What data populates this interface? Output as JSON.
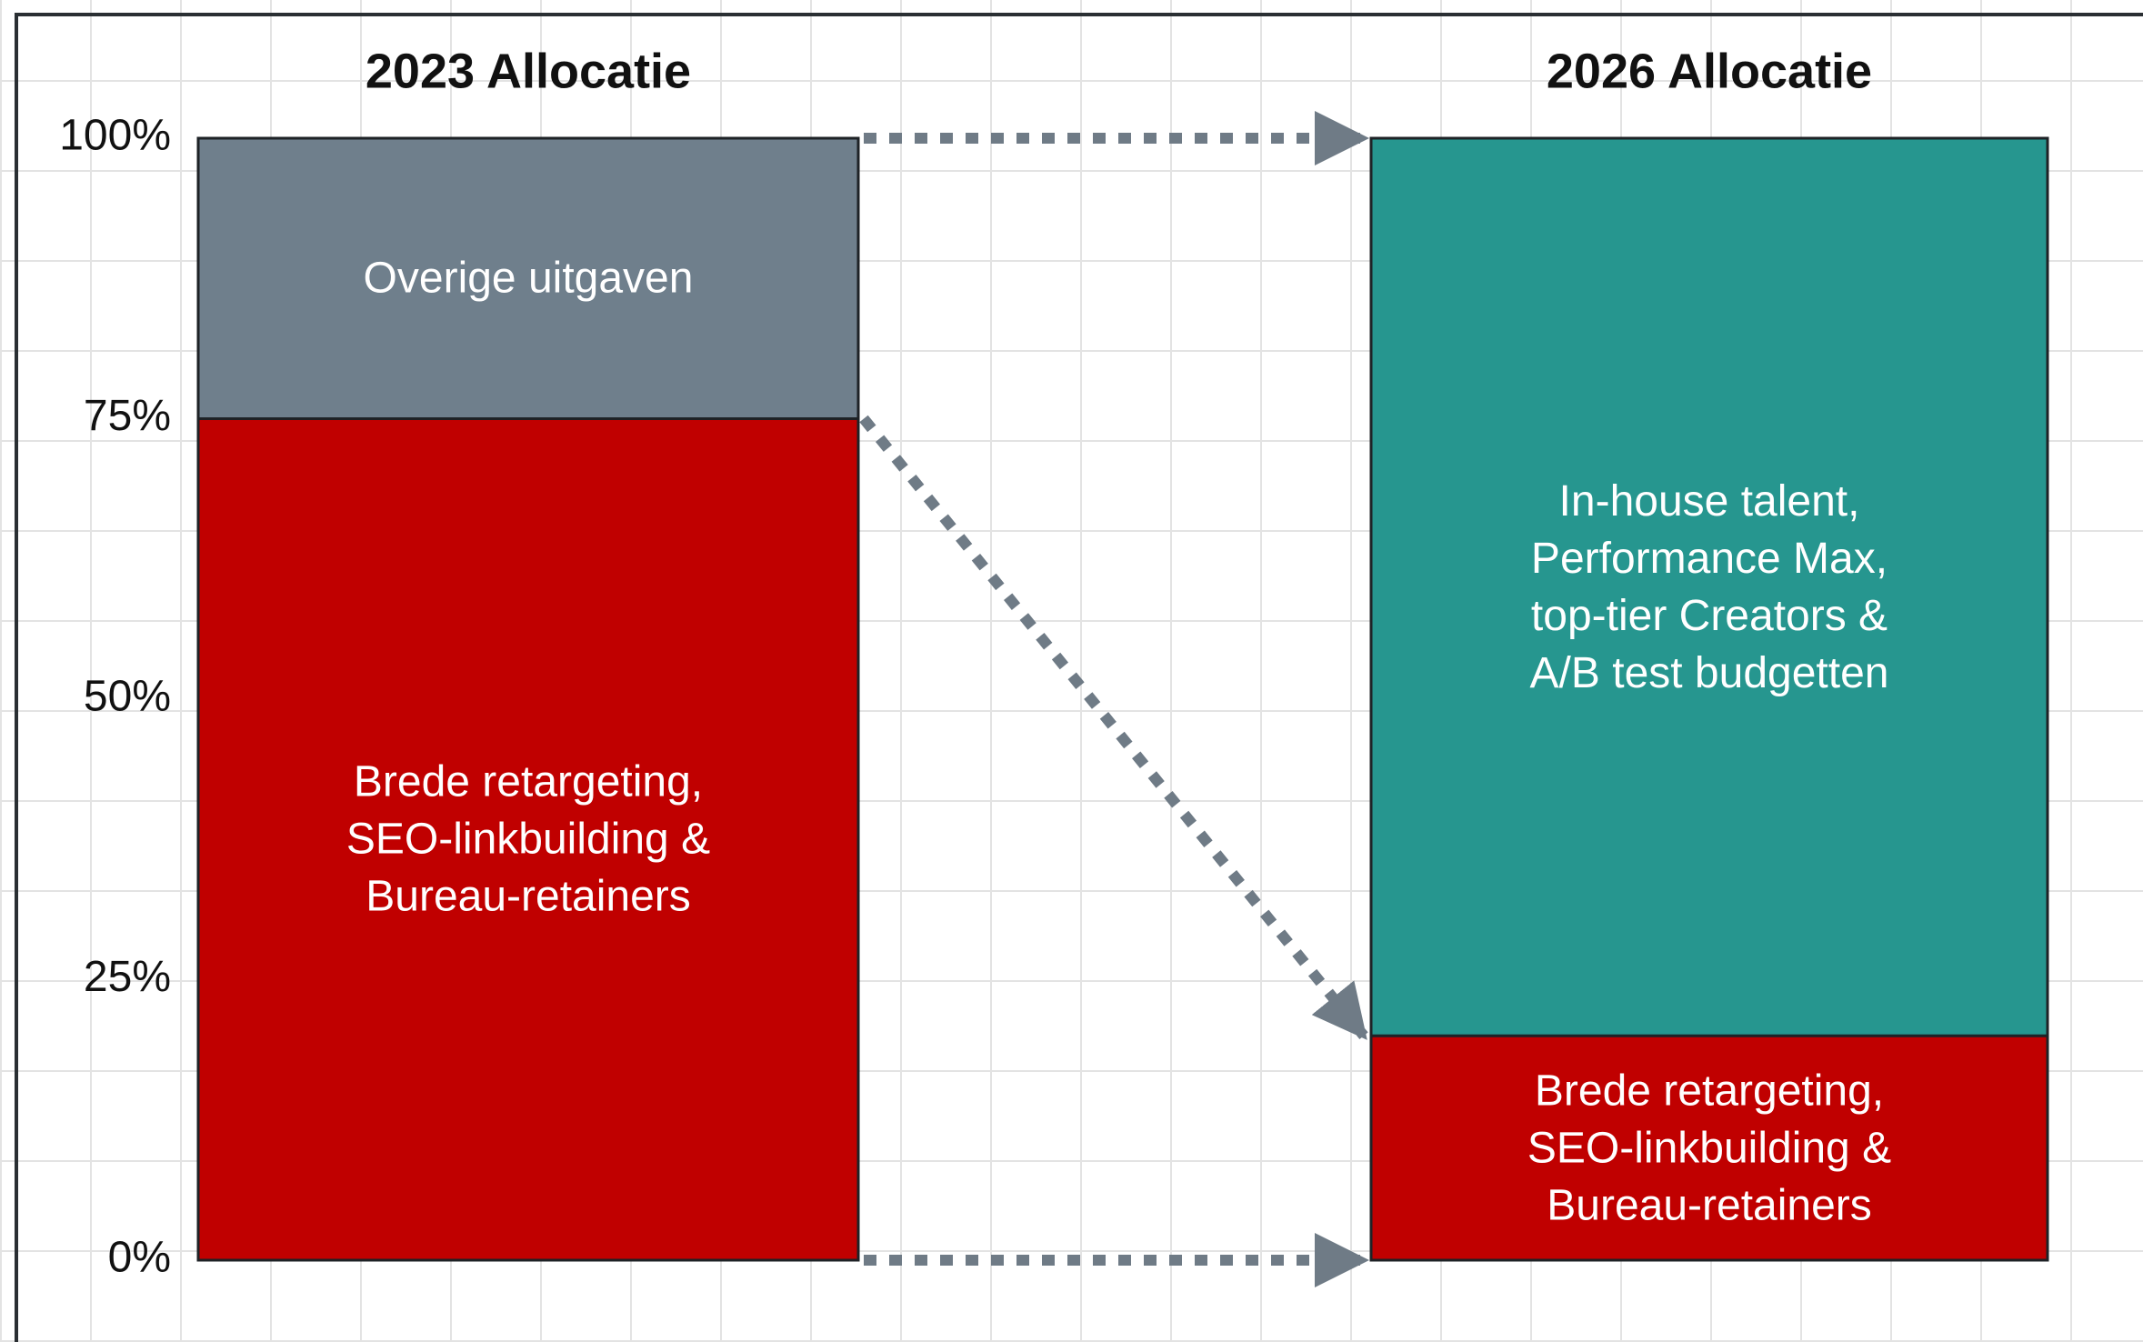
{
  "chart_data": {
    "type": "stacked_bar",
    "categories": [
      "2023 Allocatie",
      "2026 Allocatie"
    ],
    "series": [
      {
        "name": "Brede retargeting,\nSEO-linkbuilding &\nBureau-retainers",
        "color": "#c00000",
        "values": [
          75,
          20
        ]
      },
      {
        "name": "Overige uitgaven",
        "color": "#6f7f8c",
        "values": [
          25,
          null
        ]
      },
      {
        "name": "In-house talent,\nPerformance Max,\ntop-tier Creators &\nA/B test budgetten",
        "color": "#26968f",
        "values": [
          null,
          80
        ]
      }
    ],
    "ylim": [
      0,
      100
    ],
    "yticks": [
      {
        "value": 0,
        "label": "0%"
      },
      {
        "value": 25,
        "label": "25%"
      },
      {
        "value": 50,
        "label": "50%"
      },
      {
        "value": 75,
        "label": "75%"
      },
      {
        "value": 100,
        "label": "100%"
      }
    ]
  }
}
